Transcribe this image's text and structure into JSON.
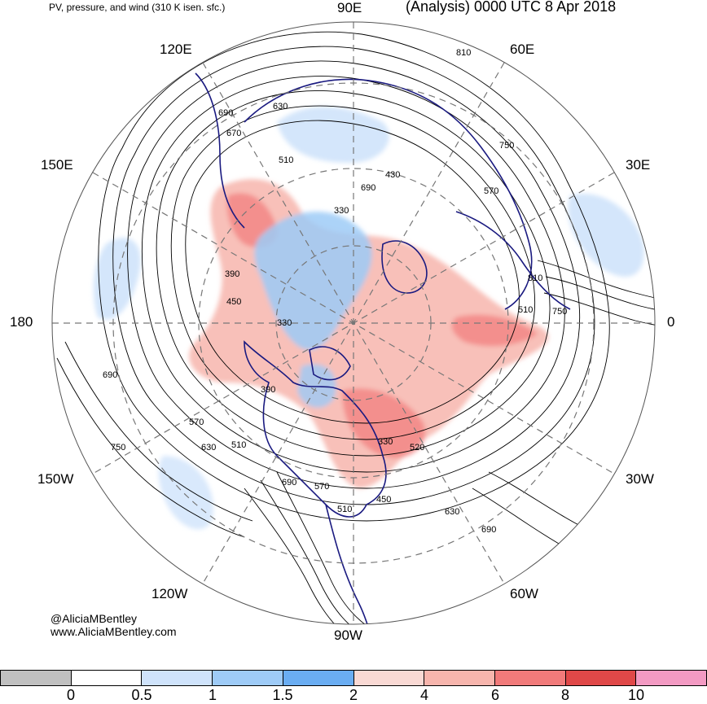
{
  "title": {
    "left": "PV, pressure, and wind (310 K isen. sfc.)",
    "right": "(Analysis) 0000 UTC 8 Apr 2018"
  },
  "longitude_labels": [
    "90E",
    "60E",
    "30E",
    "0",
    "30W",
    "60W",
    "90W",
    "120W",
    "150W",
    "180",
    "150E",
    "120E"
  ],
  "contour_labels": [
    "810",
    "630",
    "690",
    "670",
    "510",
    "750",
    "430",
    "690",
    "570",
    "330",
    "390",
    "450",
    "330",
    "810",
    "750",
    "510",
    "690",
    "390",
    "570",
    "510",
    "630",
    "750",
    "690",
    "570",
    "510",
    "330",
    "630",
    "690",
    "450",
    "520"
  ],
  "credit": {
    "handle": "@AliciaMBentley",
    "site": "www.AliciaMBentley.com"
  },
  "colorbar": {
    "colors": [
      "#c0c0c0",
      "#ffffff",
      "#cfe3fb",
      "#9ecbf7",
      "#6aadf2",
      "#f9d9d4",
      "#f7b5ad",
      "#f17a7a",
      "#e04848",
      "#f39ac3"
    ],
    "tick_labels": [
      "0",
      "0.5",
      "1",
      "1.5",
      "2",
      "4",
      "6",
      "8",
      "10"
    ]
  },
  "colors": {
    "contour": "#000000",
    "coastline": "#1a1a80",
    "grid": "#777777",
    "pv_low": "#9ecbf7",
    "pv_high": "#f17a7a"
  }
}
